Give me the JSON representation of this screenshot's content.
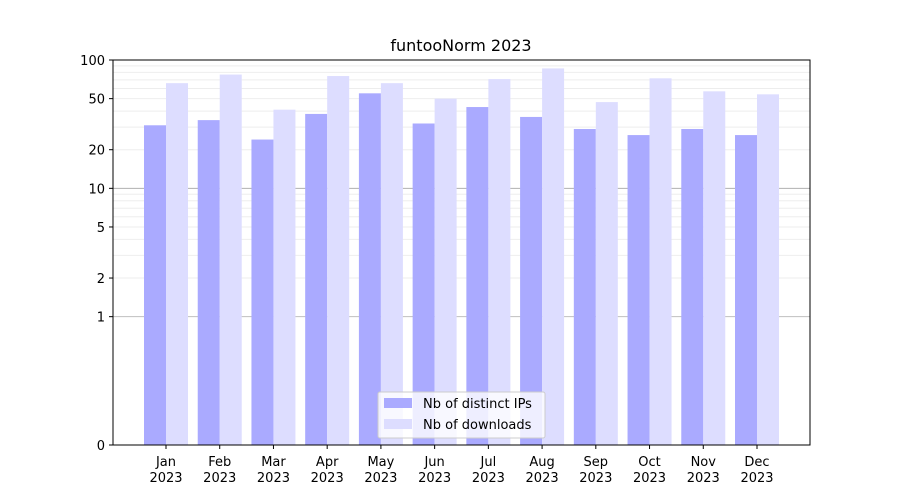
{
  "chart_data": {
    "type": "bar",
    "title": "funtooNorm 2023",
    "xlabel": "",
    "ylabel": "",
    "y_scale": "symlog",
    "ylim": [
      0,
      100
    ],
    "y_ticks": [
      0,
      1,
      2,
      5,
      10,
      20,
      50,
      100
    ],
    "grid": "horizontal, major darker at 1 and 10",
    "legend_position": "bottom-center",
    "categories": [
      "Jan\n2023",
      "Feb\n2023",
      "Mar\n2023",
      "Apr\n2023",
      "May\n2023",
      "Jun\n2023",
      "Jul\n2023",
      "Aug\n2023",
      "Sep\n2023",
      "Oct\n2023",
      "Nov\n2023",
      "Dec\n2023"
    ],
    "category_lines": [
      [
        "Jan",
        "2023"
      ],
      [
        "Feb",
        "2023"
      ],
      [
        "Mar",
        "2023"
      ],
      [
        "Apr",
        "2023"
      ],
      [
        "May",
        "2023"
      ],
      [
        "Jun",
        "2023"
      ],
      [
        "Jul",
        "2023"
      ],
      [
        "Aug",
        "2023"
      ],
      [
        "Sep",
        "2023"
      ],
      [
        "Oct",
        "2023"
      ],
      [
        "Nov",
        "2023"
      ],
      [
        "Dec",
        "2023"
      ]
    ],
    "series": [
      {
        "name": "Nb of distinct IPs",
        "color": "#aaaaff",
        "values": [
          31,
          34,
          24,
          38,
          55,
          32,
          43,
          36,
          29,
          26,
          29,
          26
        ]
      },
      {
        "name": "Nb of downloads",
        "color": "#ddddff",
        "values": [
          66,
          77,
          41,
          75,
          66,
          50,
          71,
          86,
          47,
          72,
          57,
          54
        ]
      }
    ]
  }
}
